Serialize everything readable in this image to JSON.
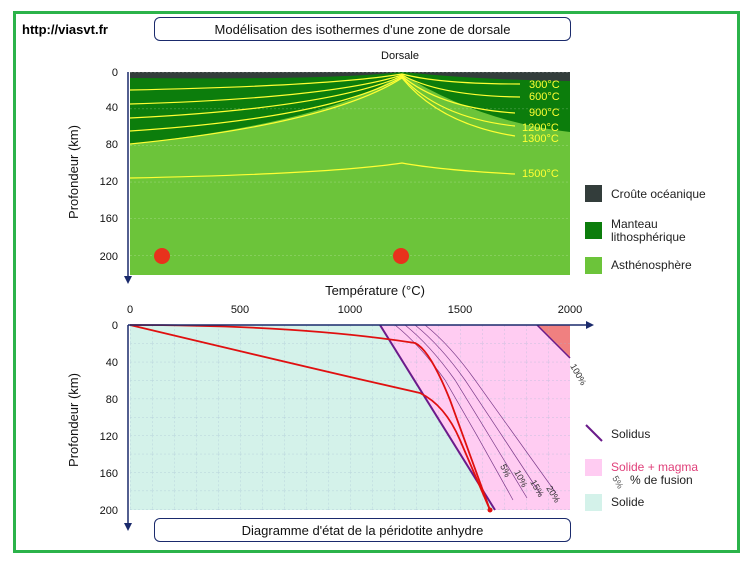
{
  "site_label": "http://viasvt.fr",
  "top_panel": {
    "title": "Modélisation des isothermes d'une zone de dorsale",
    "ridge_label": "Dorsale",
    "y_axis_label": "Profondeur (km)",
    "y_ticks": [
      "0",
      "40",
      "80",
      "120",
      "160",
      "200"
    ],
    "isotherms": [
      "300°C",
      "600°C",
      "900°C",
      "1200°C",
      "1300°C",
      "1500°C"
    ],
    "legend": [
      {
        "label": "Croûte océanique",
        "color": "#333d3b"
      },
      {
        "label_line1": "Manteau",
        "label_line2": "lithosphérique",
        "color": "#0c7d0c"
      },
      {
        "label": "Asthénosphère",
        "color": "#6cc43a"
      }
    ]
  },
  "bottom_panel": {
    "title": "Diagramme d'état de la péridotite anhydre",
    "x_axis_label": "Température (°C)",
    "x_ticks": [
      "0",
      "500",
      "1000",
      "1500",
      "2000"
    ],
    "y_axis_label": "Profondeur (km)",
    "y_ticks": [
      "0",
      "40",
      "80",
      "120",
      "160",
      "200"
    ],
    "fusion_labels": [
      "5%",
      "10%",
      "15%",
      "20%"
    ],
    "top_fusion_label": "100%",
    "legend": [
      {
        "label": "Solidus",
        "color": "#6a1b8a"
      },
      {
        "label": "Solide + magma",
        "note": "% de fusion",
        "note_glyph": "5%",
        "color": "#ffccf2"
      },
      {
        "label": "Solide",
        "color": "#d4f2ea"
      }
    ]
  },
  "colors": {
    "frame": "#2bb34a",
    "crust": "#333d3b",
    "lithosphere": "#0c7d0c",
    "asthenosphere": "#6cc43a",
    "isotherm": "#ffff33",
    "geotherm": "#e01010",
    "solidus": "#6a1b8a",
    "axis": "#1a2a6c"
  }
}
